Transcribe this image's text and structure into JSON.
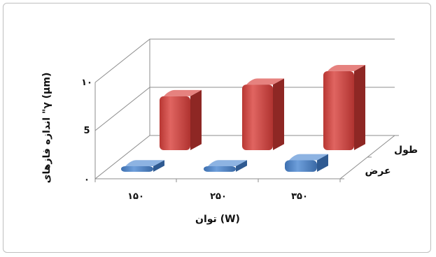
{
  "chart_data": {
    "type": "bar",
    "style": "3d-column",
    "xlabel": "توان (W)",
    "ylabel": "اندازه فازهای \"γ (μm)",
    "categories": [
      "۱۵۰",
      "۲۵۰",
      "۳۵۰"
    ],
    "yticks": [
      "۰",
      "5",
      "۱۰"
    ],
    "ylim": [
      0,
      10
    ],
    "grid": true,
    "series": [
      {
        "name": "عرض",
        "color": "#4f81bd",
        "values": [
          0.3,
          0.4,
          1.2
        ]
      },
      {
        "name": "طول",
        "color": "#c0504d",
        "values": [
          5.6,
          6.8,
          8.2
        ]
      }
    ]
  }
}
